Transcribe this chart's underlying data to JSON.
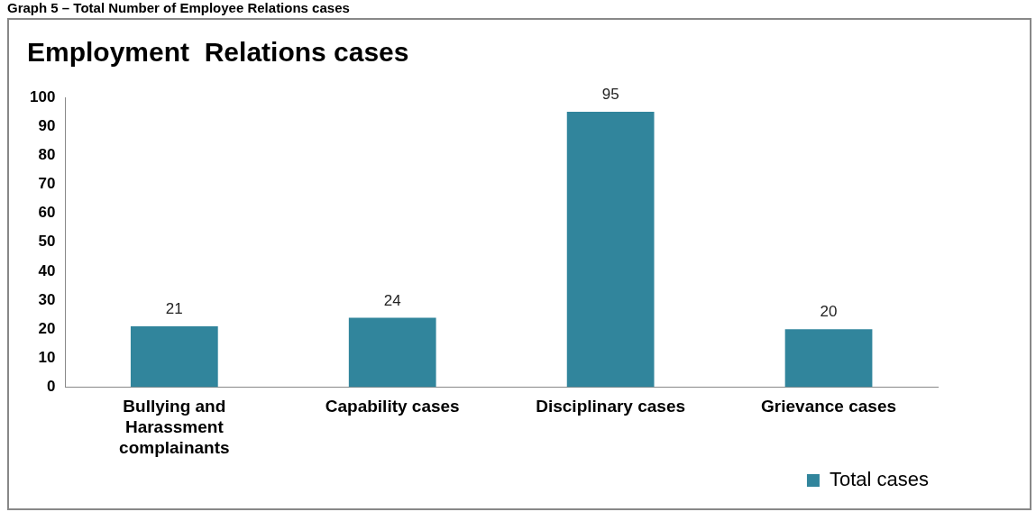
{
  "chart_data": {
    "type": "bar",
    "title": "Employment  Relations cases",
    "annotations": [
      "Graph 5 – Total Number of Employee Relations cases"
    ],
    "categories": [
      "Bullying and Harassment complainants",
      "Capability cases",
      "Disciplinary cases",
      "Grievance cases"
    ],
    "series": [
      {
        "name": "Total cases",
        "color": "#31859c",
        "values": [
          21,
          24,
          95,
          20
        ]
      }
    ],
    "ylim": [
      0,
      100
    ],
    "yticks": [
      0,
      10,
      20,
      30,
      40,
      50,
      60,
      70,
      80,
      90,
      100
    ],
    "grid": false,
    "legend": "bottom right",
    "data_labels": true
  }
}
